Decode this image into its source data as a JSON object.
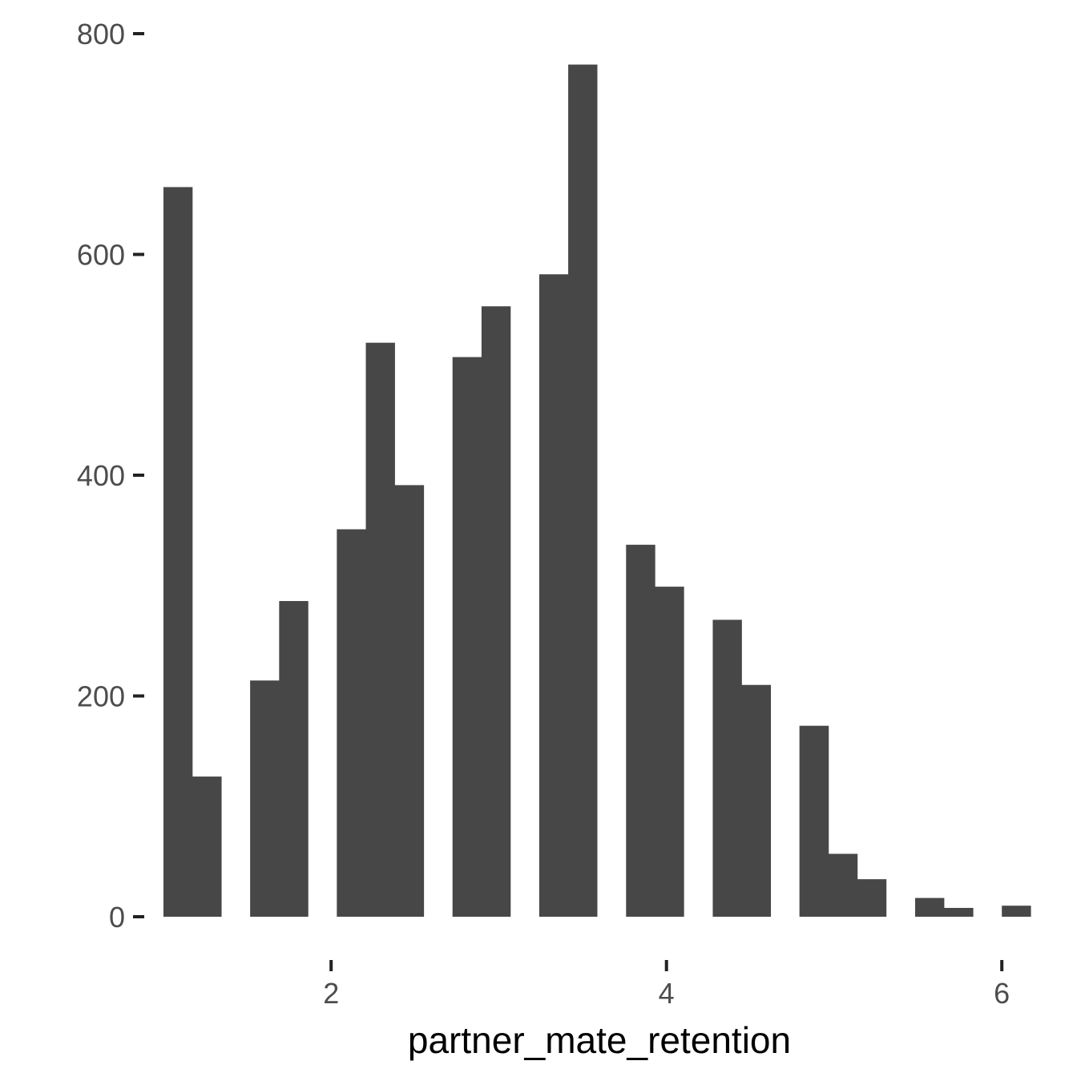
{
  "chart_data": {
    "type": "bar",
    "title": "",
    "xlabel": "partner_mate_retention",
    "ylabel": "",
    "xlim": [
      1.048,
      6.152
    ],
    "ylim": [
      0,
      800
    ],
    "x_ticks": [
      "2",
      "4",
      "6"
    ],
    "x_tick_values": [
      2,
      4,
      6
    ],
    "y_ticks": [
      "0",
      "200",
      "400",
      "600",
      "800"
    ],
    "y_tick_values": [
      0,
      200,
      400,
      600,
      800
    ],
    "grid": false,
    "bar_color": "#474747",
    "bins": [
      {
        "x0": 1.0,
        "x1": 1.172,
        "count": 661
      },
      {
        "x0": 1.172,
        "x1": 1.345,
        "count": 127
      },
      {
        "x0": 1.517,
        "x1": 1.69,
        "count": 214
      },
      {
        "x0": 1.69,
        "x1": 1.862,
        "count": 286
      },
      {
        "x0": 2.034,
        "x1": 2.207,
        "count": 351
      },
      {
        "x0": 2.207,
        "x1": 2.379,
        "count": 520
      },
      {
        "x0": 2.379,
        "x1": 2.552,
        "count": 391
      },
      {
        "x0": 2.724,
        "x1": 2.897,
        "count": 507
      },
      {
        "x0": 2.897,
        "x1": 3.069,
        "count": 553
      },
      {
        "x0": 3.241,
        "x1": 3.414,
        "count": 582
      },
      {
        "x0": 3.414,
        "x1": 3.586,
        "count": 772
      },
      {
        "x0": 3.759,
        "x1": 3.931,
        "count": 337
      },
      {
        "x0": 3.931,
        "x1": 4.103,
        "count": 299
      },
      {
        "x0": 4.276,
        "x1": 4.448,
        "count": 269
      },
      {
        "x0": 4.448,
        "x1": 4.621,
        "count": 210
      },
      {
        "x0": 4.793,
        "x1": 4.966,
        "count": 173
      },
      {
        "x0": 4.966,
        "x1": 5.138,
        "count": 57
      },
      {
        "x0": 5.138,
        "x1": 5.31,
        "count": 34
      },
      {
        "x0": 5.483,
        "x1": 5.655,
        "count": 17
      },
      {
        "x0": 5.655,
        "x1": 5.828,
        "count": 8
      },
      {
        "x0": 6.0,
        "x1": 6.172,
        "count": 10
      }
    ]
  }
}
